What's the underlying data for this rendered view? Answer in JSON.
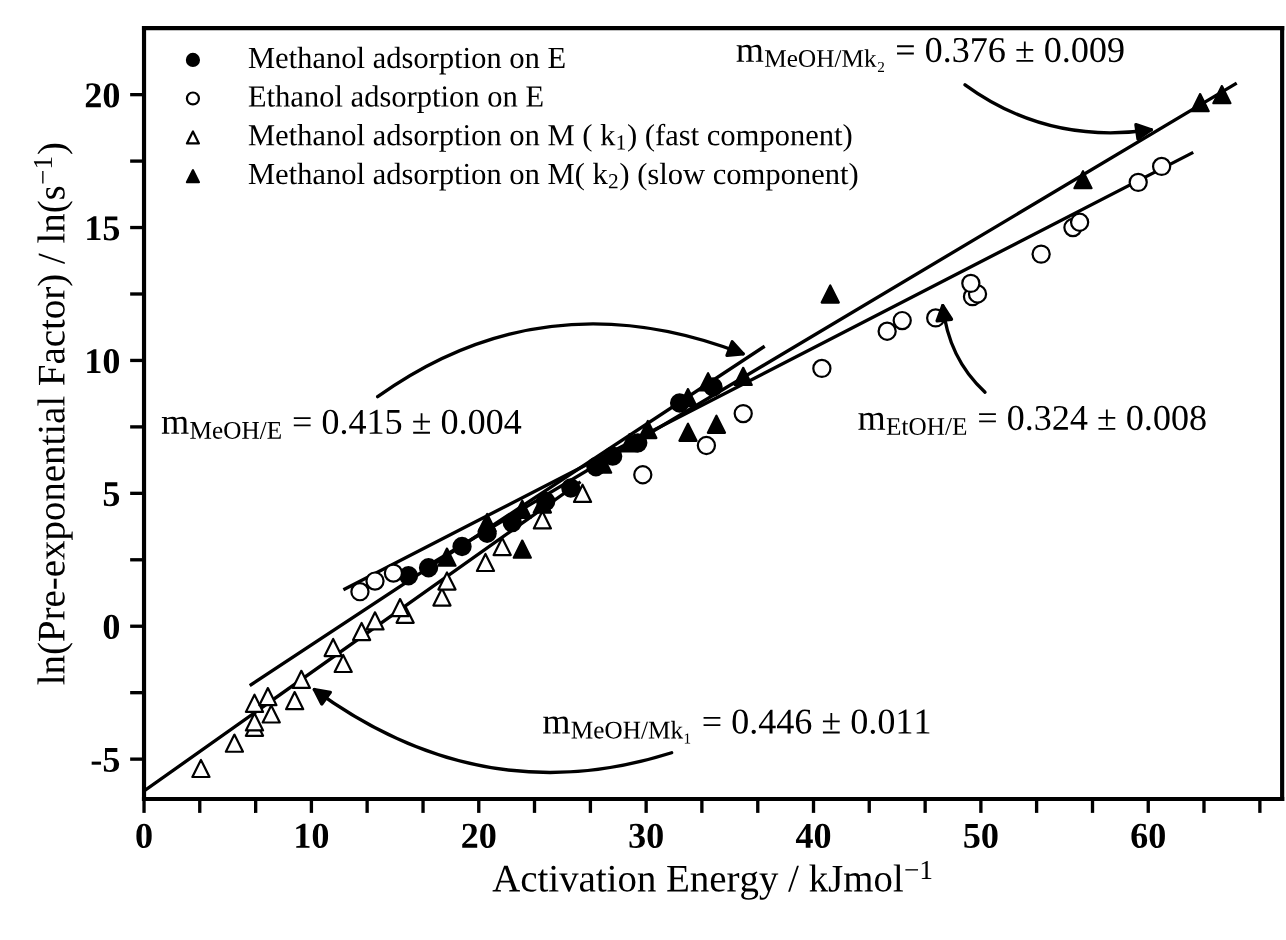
{
  "chart_data": {
    "type": "scatter",
    "xlabel": "Activation Energy / kJmol$^{−1}$",
    "ylabel": "ln(Pre-exponential Factor) / ln(s$^{−1}$)",
    "xlim": [
      0,
      68
    ],
    "ylim": [
      -6.5,
      22.5
    ],
    "xticks": [
      0,
      {
        "value": 3.33,
        "label": null
      },
      {
        "value": 6.67,
        "label": null
      },
      10,
      {
        "value": 13.33,
        "label": null
      },
      {
        "value": 16.67,
        "label": null
      },
      20,
      {
        "value": 23.33,
        "label": null
      },
      {
        "value": 26.67,
        "label": null
      },
      30,
      {
        "value": 33.33,
        "label": null
      },
      {
        "value": 36.67,
        "label": null
      },
      40,
      {
        "value": 43.33,
        "label": null
      },
      {
        "value": 46.67,
        "label": null
      },
      50,
      {
        "value": 53.33,
        "label": null
      },
      {
        "value": 56.67,
        "label": null
      },
      60,
      {
        "value": 63.33,
        "label": null
      },
      {
        "value": 66.67,
        "label": null
      }
    ],
    "yticks": [
      -5,
      {
        "value": -2.5,
        "label": null
      },
      0,
      {
        "value": 2.5,
        "label": null
      },
      5,
      {
        "value": 7.5,
        "label": null
      },
      10,
      {
        "value": 12.5,
        "label": null
      },
      15,
      {
        "value": 17.5,
        "label": null
      },
      20
    ],
    "grid": false,
    "legend": "top left",
    "series": [
      {
        "name": "Methanol adsorption on E",
        "color": "#000000",
        "marker": "circle",
        "x": [
          15.8,
          17,
          19,
          20.5,
          22,
          24,
          25.5,
          27,
          28,
          29.5,
          32,
          34
        ],
        "values": [
          1.9,
          2.2,
          3.0,
          3.5,
          3.9,
          4.7,
          5.2,
          6.0,
          6.4,
          6.9,
          8.4,
          9.0
        ]
      },
      {
        "name": "Ethanol adsorption on E",
        "color": "#ffffff",
        "marker": "circle",
        "x": [
          12.9,
          13.8,
          14.9,
          29.8,
          33.6,
          35.8,
          40.5,
          44.4,
          45.3,
          47.3,
          49.5,
          49.8,
          49.4,
          53.6,
          55.5,
          55.9,
          59.4,
          60.8
        ],
        "values": [
          1.3,
          1.7,
          2.0,
          5.7,
          6.8,
          8.0,
          9.7,
          11.1,
          11.5,
          11.6,
          12.4,
          12.5,
          12.9,
          14.0,
          15.0,
          15.2,
          16.7,
          17.3
        ]
      },
      {
        "name": "Methanol adsorption on M ( k$_{1}$) (fast component)",
        "color": "#ffffff",
        "marker": "triangle",
        "x": [
          3.4,
          5.4,
          6.6,
          6.6,
          7.6,
          6.6,
          7.4,
          9.0,
          9.4,
          11.9,
          11.3,
          13.0,
          13.8,
          15.6,
          15.3,
          17.8,
          18.1,
          20.4,
          21.4,
          23.8,
          26.2
        ],
        "values": [
          -5.35,
          -4.4,
          -3.8,
          -3.6,
          -3.3,
          -2.9,
          -2.65,
          -2.8,
          -2.0,
          -1.4,
          -0.8,
          -0.2,
          0.2,
          0.45,
          0.7,
          1.1,
          1.7,
          2.4,
          3.0,
          4.0,
          5.0
        ]
      },
      {
        "name": "Methanol adsorption on M( k$_{2}$) (slow component)",
        "color": "#000000",
        "marker": "triangle",
        "x": [
          18.1,
          20.5,
          22.6,
          23.8,
          22.6,
          27.4,
          29,
          30.1,
          32.5,
          32.5,
          33.7,
          35.8,
          34.2,
          41.0,
          56.1,
          63.1,
          64.4
        ],
        "values": [
          2.6,
          3.9,
          4.4,
          4.6,
          2.9,
          6.1,
          6.9,
          7.4,
          7.3,
          8.6,
          9.2,
          9.4,
          7.6,
          12.5,
          16.8,
          19.7,
          20.0
        ]
      },
      {
        "type": "line",
        "color": "#000000",
        "marker": "none",
        "x": [
          6.4,
          37
        ],
        "values": [
          -2.2,
          10.5
        ]
      },
      {
        "type": "line",
        "color": "#000000",
        "marker": "none",
        "x": [
          0,
          26
        ],
        "values": [
          -6.2,
          5.4
        ]
      },
      {
        "type": "line",
        "color": "#000000",
        "marker": "none",
        "x": [
          17,
          65.2
        ],
        "values": [
          2.3,
          20.4
        ]
      },
      {
        "type": "line",
        "color": "#000000",
        "marker": "none",
        "x": [
          12,
          62.6
        ],
        "values": [
          1.4,
          17.8
        ]
      }
    ],
    "annotations": [
      {
        "text": "m$_{MeOH/Mk₂}$ = 0.376 ± 0.009",
        "x": 60.4,
        "y": 18.7
      },
      {
        "text": "m$_{EtOH/E}$ = 0.324 ± 0.008",
        "x": 47.7,
        "y": 12.2
      },
      {
        "text": "m$_{MeOH/E}$ = 0.415 ± 0.004",
        "x": 36,
        "y": 10.2
      },
      {
        "text": "m$_{MeOH/Mk₁}$ = 0.446 ± 0.011",
        "x": 10,
        "y": -2.3
      }
    ]
  }
}
